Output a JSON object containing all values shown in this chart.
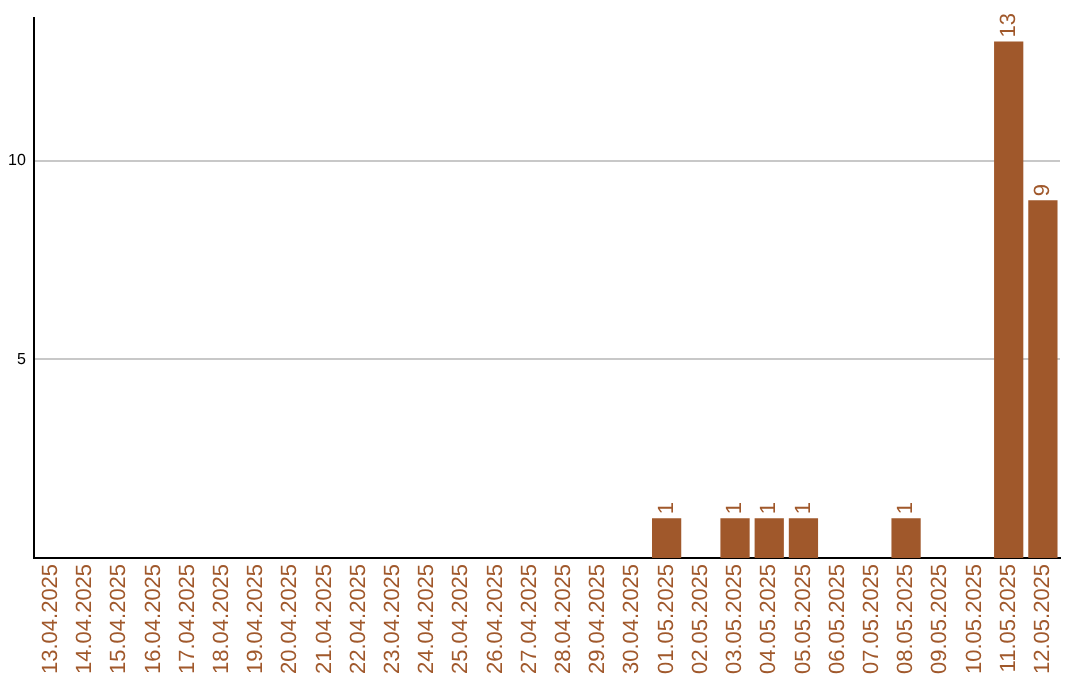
{
  "chart_data": {
    "type": "bar",
    "categories": [
      "13.04.2025",
      "14.04.2025",
      "15.04.2025",
      "16.04.2025",
      "17.04.2025",
      "18.04.2025",
      "19.04.2025",
      "20.04.2025",
      "21.04.2025",
      "22.04.2025",
      "23.04.2025",
      "24.04.2025",
      "25.04.2025",
      "26.04.2025",
      "27.04.2025",
      "28.04.2025",
      "29.04.2025",
      "30.04.2025",
      "01.05.2025",
      "02.05.2025",
      "03.05.2025",
      "04.05.2025",
      "05.05.2025",
      "06.05.2025",
      "07.05.2025",
      "08.05.2025",
      "09.05.2025",
      "10.05.2025",
      "11.05.2025",
      "12.05.2025"
    ],
    "values": [
      0,
      0,
      0,
      0,
      0,
      0,
      0,
      0,
      0,
      0,
      0,
      0,
      0,
      0,
      0,
      0,
      0,
      0,
      1,
      0,
      1,
      1,
      1,
      0,
      0,
      1,
      0,
      0,
      13,
      9
    ],
    "value_labels": [
      null,
      null,
      null,
      null,
      null,
      null,
      null,
      null,
      null,
      null,
      null,
      null,
      null,
      null,
      null,
      null,
      null,
      null,
      "1",
      null,
      "1",
      "1",
      "1",
      null,
      null,
      "1",
      null,
      null,
      "13",
      "9"
    ],
    "color": "#a0582b",
    "ylim": [
      0,
      13.6
    ],
    "yticks": [
      5,
      10
    ],
    "grid": "y",
    "legend": false
  }
}
